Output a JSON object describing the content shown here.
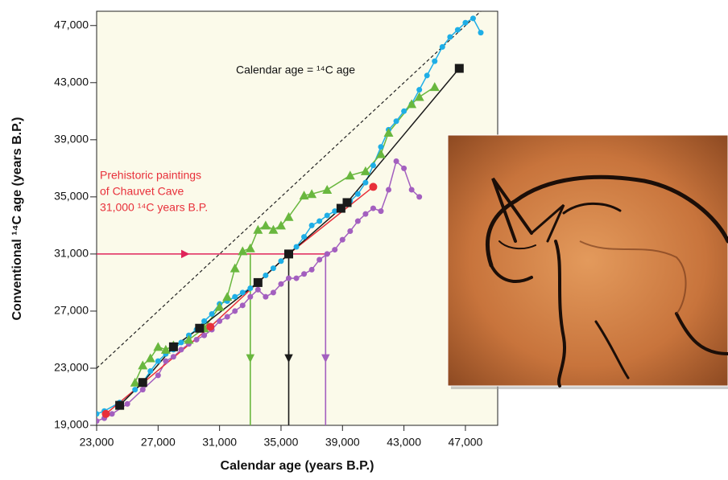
{
  "chart_data": {
    "type": "scatter",
    "x_label": "Calendar age (years B.P.)",
    "y_label": "Conventional ¹⁴C age (years B.P.)",
    "annotations": [
      "Calendar age = ¹⁴C age",
      "Prehistoric  paintings",
      "of Chauvet Cave",
      "31,000 ¹⁴C years B.P."
    ],
    "xlim": [
      23000,
      49100
    ],
    "ylim": [
      19000,
      48000
    ],
    "xticks": [
      {
        "value": 23000,
        "label": "23,000"
      },
      {
        "value": 27000,
        "label": "27,000"
      },
      {
        "value": 31000,
        "label": "31,000"
      },
      {
        "value": 35000,
        "label": "35,000"
      },
      {
        "value": 39000,
        "label": "39,000"
      },
      {
        "value": 43000,
        "label": "43,000"
      },
      {
        "value": 47000,
        "label": "47,000"
      }
    ],
    "yticks": [
      {
        "value": 19000,
        "label": "19,000"
      },
      {
        "value": 23000,
        "label": "23,000"
      },
      {
        "value": 27000,
        "label": "27,000"
      },
      {
        "value": 31000,
        "label": "31,000"
      },
      {
        "value": 35000,
        "label": "35,000"
      },
      {
        "value": 39000,
        "label": "39,000"
      },
      {
        "value": 43000,
        "label": "43,000"
      },
      {
        "value": 47000,
        "label": "47,000"
      }
    ],
    "background": "#fbfaea",
    "series": [
      {
        "color": "#a35fbf",
        "marker": "circle",
        "x": [
          23000,
          23500,
          24000,
          25000,
          26000,
          27000,
          27500,
          28000,
          28500,
          29000,
          29500,
          30000,
          30500,
          31000,
          31500,
          32000,
          32500,
          33000,
          33500,
          34000,
          34500,
          35000,
          35500,
          36000,
          36500,
          37000,
          37500,
          38000,
          38500,
          39000,
          39500,
          40000,
          40500,
          41000,
          41500,
          42000,
          42500,
          43000,
          43500,
          44000
        ],
        "values": [
          19300,
          19500,
          19800,
          20500,
          21500,
          22500,
          23500,
          23800,
          24300,
          24700,
          25000,
          25300,
          25700,
          26300,
          26600,
          27000,
          27400,
          28000,
          28500,
          28000,
          28300,
          28900,
          29300,
          29300,
          29600,
          29900,
          30600,
          31000,
          31300,
          32000,
          32600,
          33300,
          33800,
          34200,
          34000,
          35500,
          37500,
          37000,
          35500,
          35000
        ]
      },
      {
        "color": "#1eaee6",
        "marker": "circle",
        "x": [
          23000,
          23500,
          24500,
          25500,
          26000,
          26500,
          27000,
          27500,
          28000,
          28500,
          29000,
          29500,
          30000,
          30500,
          31000,
          31500,
          32000,
          32500,
          33000,
          33500,
          34000,
          34500,
          35000,
          35500,
          36000,
          36500,
          37000,
          37500,
          38000,
          38500,
          39000,
          39500,
          40000,
          40500,
          41000,
          41500,
          42000,
          42500,
          43000,
          43500,
          44000,
          44500,
          45000,
          45500,
          46000,
          46500,
          47000,
          47500,
          48000
        ],
        "values": [
          19800,
          20000,
          20600,
          21500,
          22000,
          22800,
          23500,
          24000,
          24300,
          24800,
          25300,
          25700,
          26300,
          26800,
          27500,
          27700,
          28000,
          28300,
          28600,
          29000,
          29500,
          30000,
          30500,
          31000,
          31500,
          32200,
          33000,
          33300,
          33700,
          34000,
          34300,
          34700,
          35200,
          36000,
          37200,
          38500,
          39700,
          40300,
          41000,
          41500,
          42500,
          43500,
          44500,
          45500,
          46200,
          46700,
          47200,
          47500,
          46500
        ]
      },
      {
        "color": "#69b73e",
        "marker": "triangle",
        "x": [
          25500,
          26000,
          26500,
          27000,
          27500,
          28000,
          29000,
          30000,
          31000,
          31500,
          32000,
          32500,
          33000,
          33500,
          34000,
          34500,
          35000,
          35500,
          36500,
          37000,
          38000,
          39500,
          40500,
          41500,
          42000,
          43500,
          44000,
          45000
        ],
        "values": [
          22000,
          23200,
          23700,
          24500,
          24300,
          24600,
          25000,
          25800,
          27300,
          28000,
          30000,
          31200,
          31400,
          32700,
          33000,
          32700,
          33000,
          33600,
          35100,
          35200,
          35500,
          36500,
          36800,
          38000,
          39500,
          41500,
          42000,
          42700
        ]
      },
      {
        "color": "#e8303a",
        "marker": "circle",
        "x": [
          23600,
          30400,
          35500,
          41000
        ],
        "values": [
          19800,
          25900,
          31000,
          35700
        ]
      },
      {
        "color": "#1a1a1a",
        "marker": "square",
        "x": [
          24500,
          26000,
          28000,
          29700,
          33500,
          35500,
          38900,
          39300,
          46600
        ],
        "values": [
          20400,
          22000,
          24500,
          25800,
          29000,
          31000,
          34200,
          34600,
          44000
        ]
      }
    ],
    "arrow_line": {
      "y": 31000,
      "x_end": 38200,
      "color": "#e0245a"
    },
    "drops": [
      {
        "x": 33000,
        "color": "#69b73e"
      },
      {
        "x": 35500,
        "color": "#1a1a1a"
      },
      {
        "x": 37900,
        "color": "#a35fbf"
      }
    ]
  }
}
